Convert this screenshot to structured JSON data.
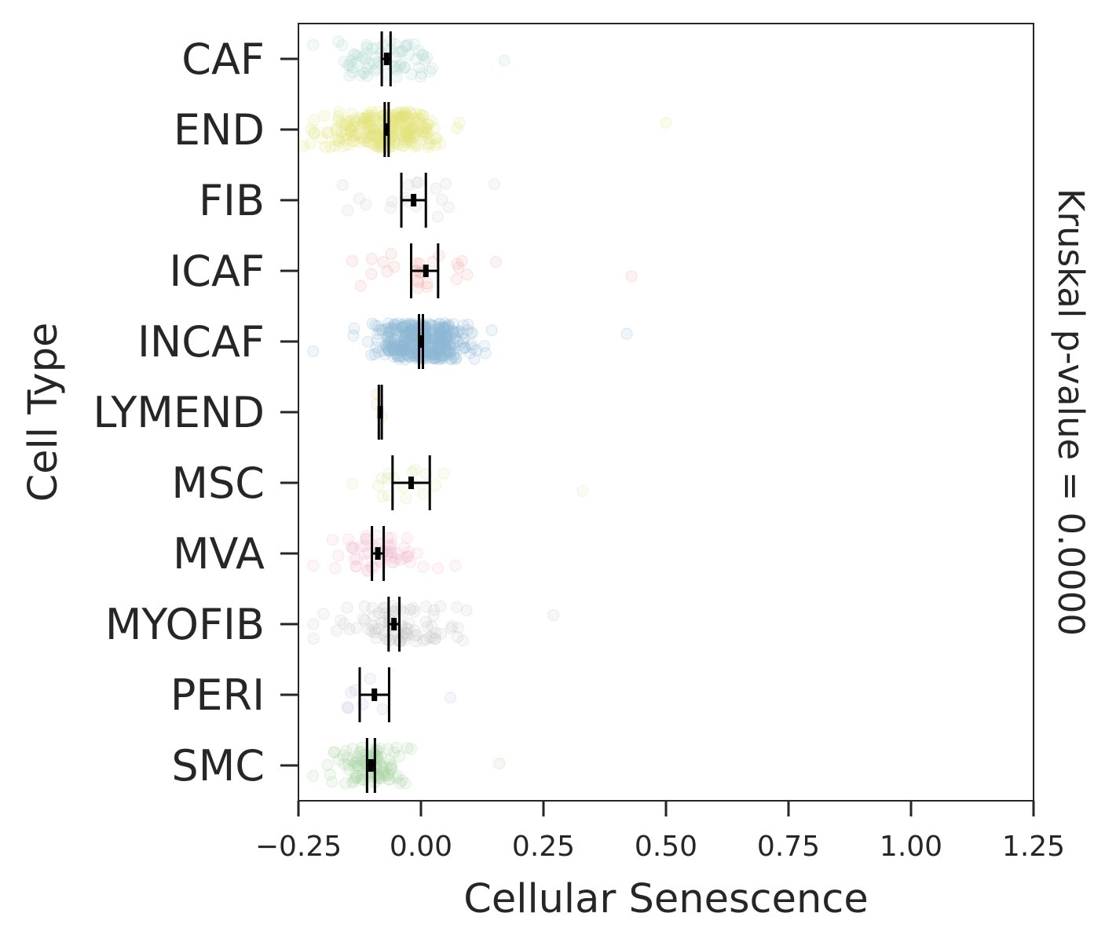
{
  "chart_data": {
    "type": "scatter",
    "subtype": "horizontal strip plot with mean and 95% CI error bars",
    "xlabel": "Cellular Senescence",
    "ylabel": "Cell Type",
    "right_annotation": "Kruskal p-value = 0.0000",
    "xlim": [
      -0.25,
      1.25
    ],
    "xticks": [
      -0.25,
      0.0,
      0.25,
      0.5,
      0.75,
      1.0,
      1.25
    ],
    "xtick_labels": [
      "−0.25",
      "0.00",
      "0.25",
      "0.50",
      "0.75",
      "1.00",
      "1.25"
    ],
    "grid": false,
    "legend": "none",
    "categories": [
      "CAF",
      "END",
      "FIB",
      "ICAF",
      "INCAF",
      "LYMEND",
      "MSC",
      "MVA",
      "MYOFIB",
      "PERI",
      "SMC"
    ],
    "series": [
      {
        "category": "CAF",
        "color": "#a8d8d0",
        "mean": -0.07,
        "ci": [
          -0.08,
          -0.062
        ],
        "n": 70,
        "range": [
          -0.22,
          0.17
        ],
        "spread": 0.09
      },
      {
        "category": "END",
        "color": "#e6e67a",
        "mean": -0.07,
        "ci": [
          -0.074,
          -0.066
        ],
        "n": 260,
        "range": [
          -0.24,
          0.5
        ],
        "spread": 0.1
      },
      {
        "category": "FIB",
        "color": "#c9c9c9",
        "mean": -0.015,
        "ci": [
          -0.04,
          0.01
        ],
        "n": 18,
        "range": [
          -0.16,
          0.15
        ],
        "spread": 0.08
      },
      {
        "category": "ICAF",
        "color": "#f1a5a0",
        "mean": 0.01,
        "ci": [
          -0.02,
          0.035
        ],
        "n": 28,
        "range": [
          -0.14,
          0.43
        ],
        "spread": 0.09
      },
      {
        "category": "INCAF",
        "color": "#8fb8d8",
        "mean": 0.0,
        "ci": [
          -0.004,
          0.004
        ],
        "n": 420,
        "range": [
          -0.22,
          0.42
        ],
        "spread": 0.08
      },
      {
        "category": "LYMEND",
        "color": "#f5c78a",
        "mean": -0.083,
        "ci": [
          -0.086,
          -0.08
        ],
        "n": 3,
        "range": [
          -0.09,
          -0.08
        ],
        "spread": 0.02
      },
      {
        "category": "MSC",
        "color": "#cfe8a0",
        "mean": -0.02,
        "ci": [
          -0.058,
          0.018
        ],
        "n": 18,
        "range": [
          -0.14,
          0.33
        ],
        "spread": 0.08
      },
      {
        "category": "MVA",
        "color": "#f3b6cc",
        "mean": -0.088,
        "ci": [
          -0.1,
          -0.076
        ],
        "n": 60,
        "range": [
          -0.22,
          0.07
        ],
        "spread": 0.07
      },
      {
        "category": "MYOFIB",
        "color": "#c4c4c4",
        "mean": -0.055,
        "ci": [
          -0.066,
          -0.044
        ],
        "n": 90,
        "range": [
          -0.22,
          0.27
        ],
        "spread": 0.1
      },
      {
        "category": "PERI",
        "color": "#c7b8df",
        "mean": -0.095,
        "ci": [
          -0.125,
          -0.065
        ],
        "n": 8,
        "range": [
          -0.15,
          0.06
        ],
        "spread": 0.05
      },
      {
        "category": "SMC",
        "color": "#a9d3a5",
        "mean": -0.102,
        "ci": [
          -0.11,
          -0.094
        ],
        "n": 110,
        "range": [
          -0.22,
          0.16
        ],
        "spread": 0.06
      }
    ]
  }
}
